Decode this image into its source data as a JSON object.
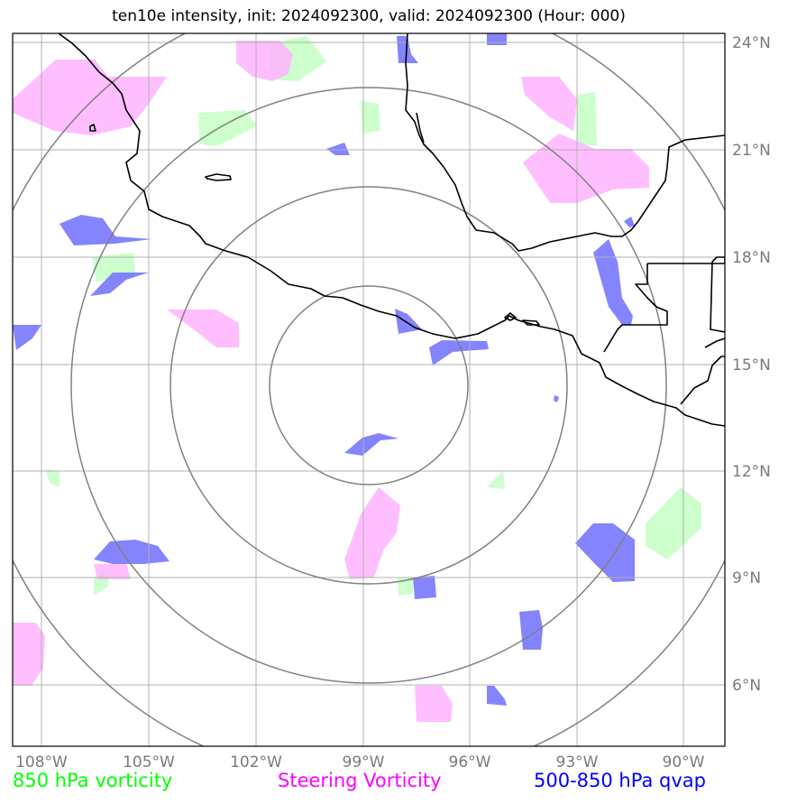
{
  "title": "ten10e intensity, init: 2024092300, valid: 2024092300 (Hour: 000)",
  "lon_labels": [
    "108°W",
    "105°W",
    "102°W",
    "99°W",
    "96°W",
    "93°W",
    "90°W"
  ],
  "lat_labels": [
    "24°N",
    "21°N",
    "18°N",
    "15°N",
    "12°N",
    "9°N",
    "6°N"
  ],
  "legend": [
    {
      "label": "850 hPa vorticity",
      "color": "#00ff00"
    },
    {
      "label": "Steering Vorticity",
      "color": "#ff00ff"
    },
    {
      "label": "500-850 hPa qvap",
      "color": "#0000ff"
    }
  ],
  "colors": {
    "vort850_fill": "#ccffcc",
    "steering_fill": "#ffb3ff",
    "qvap_fill": "#7777ff",
    "range_rings": "#808080",
    "gridlines": "#b0b0b0",
    "coastline": "#000000"
  },
  "map": {
    "lon_range": [
      -108.8,
      -88.8
    ],
    "lat_range": [
      4.4,
      24.6
    ],
    "storm_center": {
      "lon": -99.0,
      "lat": 14.4
    },
    "range_rings": 4
  }
}
